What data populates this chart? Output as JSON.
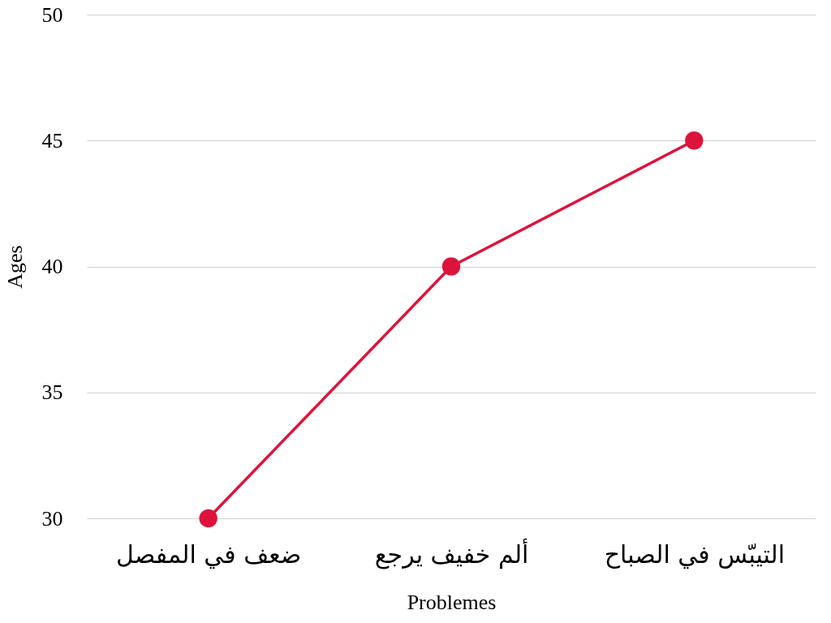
{
  "chart_data": {
    "type": "line",
    "xlabel": "Problemes",
    "ylabel": "Ages",
    "categories": [
      "ضعف في المفصل",
      "ألم خفيف يرجع",
      "التيبّس في الصباح"
    ],
    "series": [
      {
        "color": "#dc143c",
        "values": [
          30,
          40,
          45
        ]
      }
    ],
    "ylim": [
      30,
      50
    ],
    "yticks": [
      30,
      35,
      40,
      45,
      50
    ],
    "grid": "y",
    "marker": "circle",
    "line_style": "solid"
  }
}
